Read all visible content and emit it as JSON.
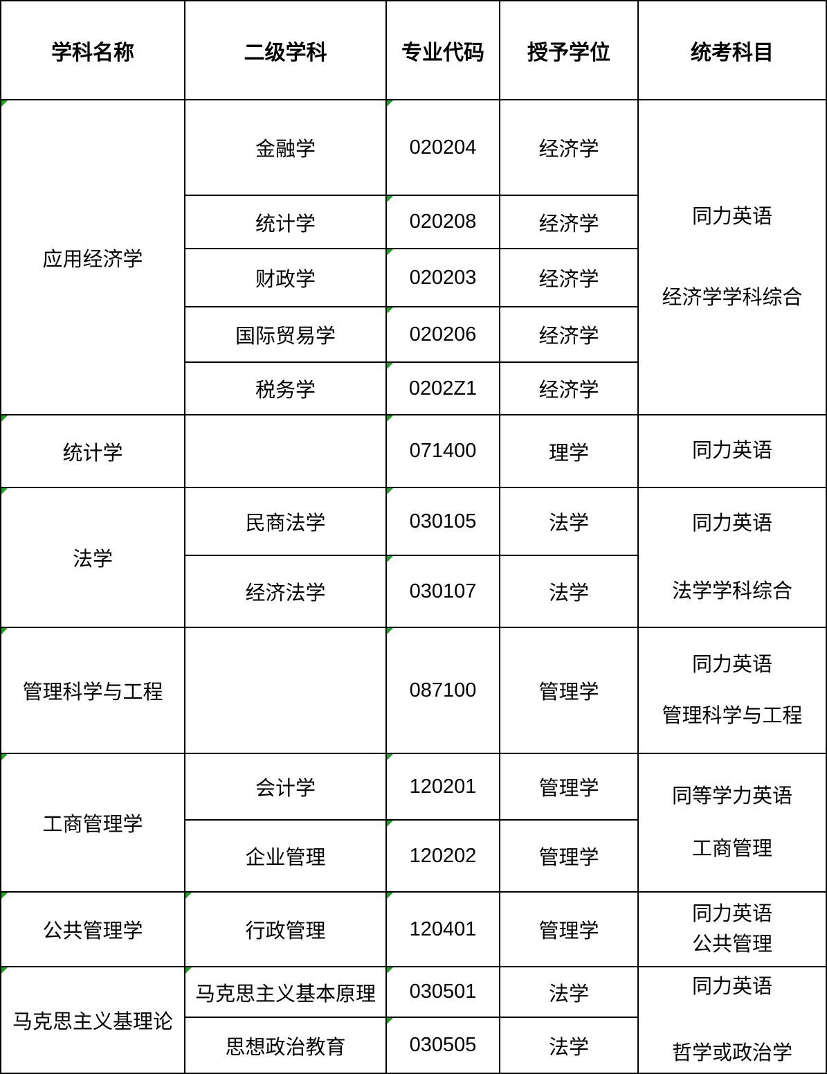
{
  "table": {
    "headers": [
      "学科名称",
      "二级学科",
      "专业代码",
      "授予学位",
      "统考科目"
    ],
    "sections": [
      {
        "discipline": "应用经济学",
        "indicator": true,
        "rows": [
          {
            "sub": "金融学",
            "sub_indicator": false,
            "code": "020204",
            "code_indicator": true,
            "degree": "经济学"
          },
          {
            "sub": "统计学",
            "sub_indicator": false,
            "code": "020208",
            "code_indicator": true,
            "degree": "经济学"
          },
          {
            "sub": "财政学",
            "sub_indicator": false,
            "code": "020203",
            "code_indicator": true,
            "degree": "经济学"
          },
          {
            "sub": "国际贸易学",
            "sub_indicator": false,
            "code": "020206",
            "code_indicator": true,
            "degree": "经济学"
          },
          {
            "sub": "税务学",
            "sub_indicator": false,
            "code": "0202Z1",
            "code_indicator": true,
            "degree": "经济学"
          }
        ],
        "exam_lines": [
          "同力英语",
          "经济学学科综合"
        ]
      },
      {
        "discipline": "统计学",
        "indicator": true,
        "rows": [
          {
            "sub": "",
            "sub_indicator": false,
            "code": "071400",
            "code_indicator": true,
            "degree": "理学"
          }
        ],
        "exam_lines": [
          "同力英语"
        ]
      },
      {
        "discipline": "法学",
        "indicator": true,
        "rows": [
          {
            "sub": "民商法学",
            "sub_indicator": false,
            "code": "030105",
            "code_indicator": true,
            "degree": "法学"
          },
          {
            "sub": "经济法学",
            "sub_indicator": false,
            "code": "030107",
            "code_indicator": true,
            "degree": "法学"
          }
        ],
        "exam_lines": [
          "同力英语",
          "法学学科综合"
        ]
      },
      {
        "discipline": "管理科学与工程",
        "indicator": true,
        "rows": [
          {
            "sub": "",
            "sub_indicator": false,
            "code": "087100",
            "code_indicator": true,
            "degree": "管理学"
          }
        ],
        "exam_lines": [
          "同力英语",
          "管理科学与工程"
        ]
      },
      {
        "discipline": "工商管理学",
        "indicator": true,
        "rows": [
          {
            "sub": "会计学",
            "sub_indicator": false,
            "code": "120201",
            "code_indicator": true,
            "degree": "管理学"
          },
          {
            "sub": "企业管理",
            "sub_indicator": false,
            "code": "120202",
            "code_indicator": true,
            "degree": "管理学"
          }
        ],
        "exam_lines": [
          "同等学力英语",
          "工商管理"
        ]
      },
      {
        "discipline": "公共管理学",
        "indicator": true,
        "rows": [
          {
            "sub": "行政管理",
            "sub_indicator": true,
            "code": "120401",
            "code_indicator": true,
            "degree": "管理学"
          }
        ],
        "exam_lines": [
          "同力英语",
          "公共管理"
        ]
      },
      {
        "discipline": "马克思主义基理论",
        "indicator": true,
        "rows": [
          {
            "sub": "马克思主义基本原理",
            "sub_indicator": true,
            "code": "030501",
            "code_indicator": true,
            "degree": "法学"
          },
          {
            "sub": "思想政治教育",
            "sub_indicator": false,
            "code": "030505",
            "code_indicator": true,
            "degree": "法学"
          }
        ],
        "exam_lines": [
          "同力英语",
          "哲学或政治学"
        ]
      }
    ],
    "colors": {
      "border": "#000000",
      "background": "#ffffff",
      "text": "#000000",
      "error_indicator_icon": "#21a121"
    }
  }
}
